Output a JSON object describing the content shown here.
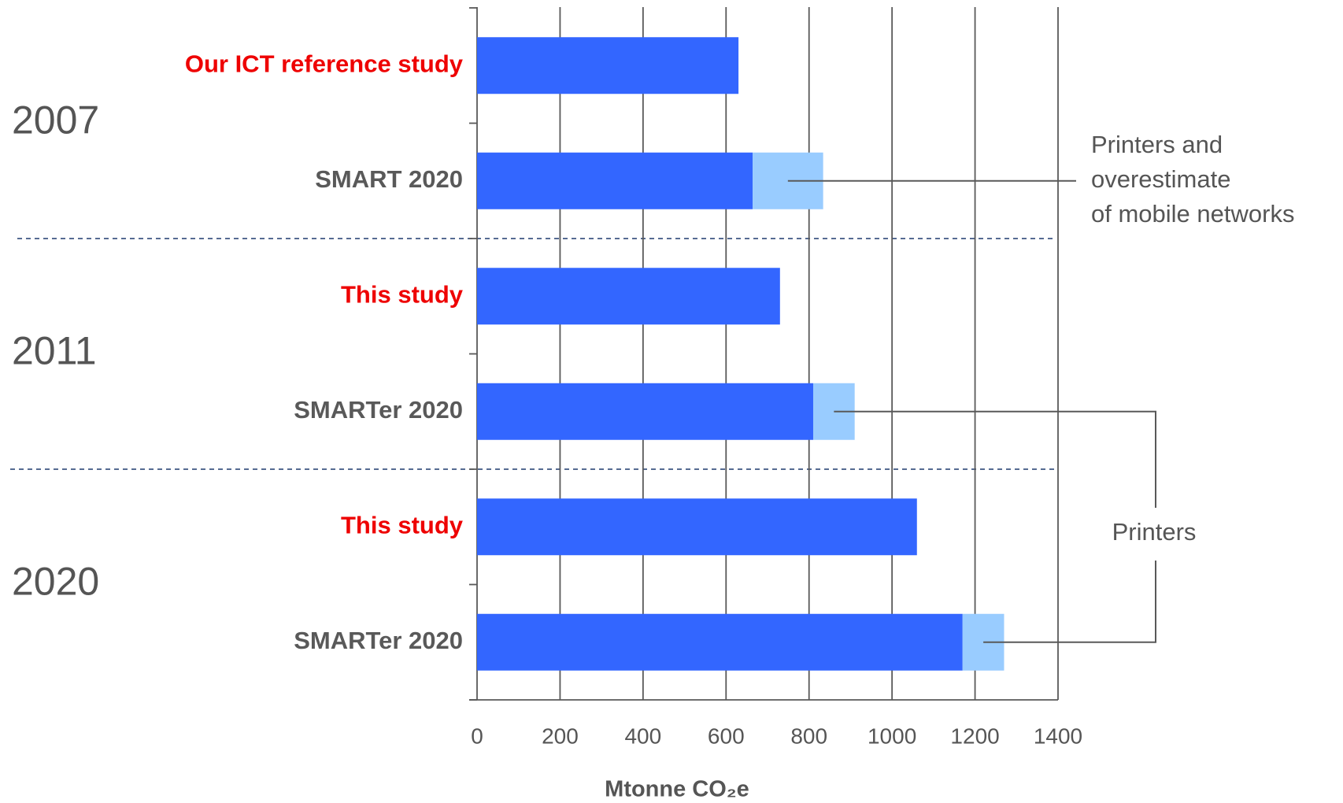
{
  "chart_data": {
    "type": "stacked-barh",
    "categories": [
      "Our ICT reference study",
      "SMART 2020",
      "This study",
      "SMARTer 2020",
      "This study",
      "SMARTer 2020"
    ],
    "category_colors": [
      "#ee0000",
      "#595959",
      "#ee0000",
      "#595959",
      "#ee0000",
      "#595959"
    ],
    "groups": [
      "2007",
      "2011",
      "2020"
    ],
    "series": [
      {
        "color": "#3366ff",
        "values": [
          630,
          664,
          730,
          810,
          1060,
          1170
        ]
      },
      {
        "color": "#99ccff",
        "values": [
          null,
          170,
          null,
          100,
          null,
          100
        ]
      }
    ],
    "xlim": [
      0,
      1400
    ],
    "xticks": [
      0,
      200,
      400,
      600,
      800,
      1000,
      1200,
      1400
    ],
    "xlabel": "Mtonne CO₂e",
    "grid": true,
    "annotations": [
      [
        "Printers and",
        "overestimate",
        "of mobile networks"
      ],
      "Printers"
    ]
  }
}
